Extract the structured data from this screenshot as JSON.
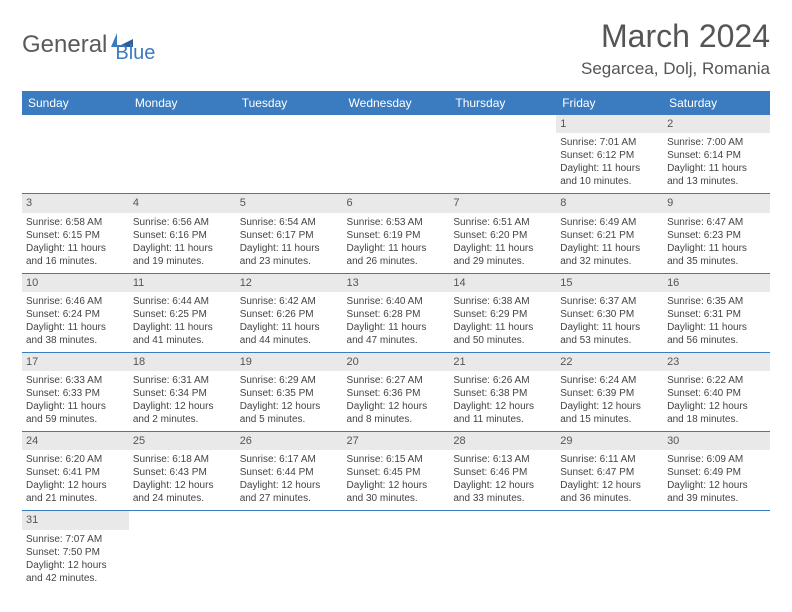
{
  "logo": {
    "general": "General",
    "blue": "Blue"
  },
  "title": "March 2024",
  "location": "Segarcea, Dolj, Romania",
  "colors": {
    "header_bg": "#3b7bbf",
    "header_text": "#ffffff",
    "daynum_bg": "#e9e9e9",
    "border": "#3b7bbf",
    "text": "#444444",
    "title_text": "#555555"
  },
  "days_header": [
    "Sunday",
    "Monday",
    "Tuesday",
    "Wednesday",
    "Thursday",
    "Friday",
    "Saturday"
  ],
  "weeks": [
    [
      null,
      null,
      null,
      null,
      null,
      {
        "n": "1",
        "sunrise": "Sunrise: 7:01 AM",
        "sunset": "Sunset: 6:12 PM",
        "day1": "Daylight: 11 hours",
        "day2": "and 10 minutes."
      },
      {
        "n": "2",
        "sunrise": "Sunrise: 7:00 AM",
        "sunset": "Sunset: 6:14 PM",
        "day1": "Daylight: 11 hours",
        "day2": "and 13 minutes."
      }
    ],
    [
      {
        "n": "3",
        "sunrise": "Sunrise: 6:58 AM",
        "sunset": "Sunset: 6:15 PM",
        "day1": "Daylight: 11 hours",
        "day2": "and 16 minutes."
      },
      {
        "n": "4",
        "sunrise": "Sunrise: 6:56 AM",
        "sunset": "Sunset: 6:16 PM",
        "day1": "Daylight: 11 hours",
        "day2": "and 19 minutes."
      },
      {
        "n": "5",
        "sunrise": "Sunrise: 6:54 AM",
        "sunset": "Sunset: 6:17 PM",
        "day1": "Daylight: 11 hours",
        "day2": "and 23 minutes."
      },
      {
        "n": "6",
        "sunrise": "Sunrise: 6:53 AM",
        "sunset": "Sunset: 6:19 PM",
        "day1": "Daylight: 11 hours",
        "day2": "and 26 minutes."
      },
      {
        "n": "7",
        "sunrise": "Sunrise: 6:51 AM",
        "sunset": "Sunset: 6:20 PM",
        "day1": "Daylight: 11 hours",
        "day2": "and 29 minutes."
      },
      {
        "n": "8",
        "sunrise": "Sunrise: 6:49 AM",
        "sunset": "Sunset: 6:21 PM",
        "day1": "Daylight: 11 hours",
        "day2": "and 32 minutes."
      },
      {
        "n": "9",
        "sunrise": "Sunrise: 6:47 AM",
        "sunset": "Sunset: 6:23 PM",
        "day1": "Daylight: 11 hours",
        "day2": "and 35 minutes."
      }
    ],
    [
      {
        "n": "10",
        "sunrise": "Sunrise: 6:46 AM",
        "sunset": "Sunset: 6:24 PM",
        "day1": "Daylight: 11 hours",
        "day2": "and 38 minutes."
      },
      {
        "n": "11",
        "sunrise": "Sunrise: 6:44 AM",
        "sunset": "Sunset: 6:25 PM",
        "day1": "Daylight: 11 hours",
        "day2": "and 41 minutes."
      },
      {
        "n": "12",
        "sunrise": "Sunrise: 6:42 AM",
        "sunset": "Sunset: 6:26 PM",
        "day1": "Daylight: 11 hours",
        "day2": "and 44 minutes."
      },
      {
        "n": "13",
        "sunrise": "Sunrise: 6:40 AM",
        "sunset": "Sunset: 6:28 PM",
        "day1": "Daylight: 11 hours",
        "day2": "and 47 minutes."
      },
      {
        "n": "14",
        "sunrise": "Sunrise: 6:38 AM",
        "sunset": "Sunset: 6:29 PM",
        "day1": "Daylight: 11 hours",
        "day2": "and 50 minutes."
      },
      {
        "n": "15",
        "sunrise": "Sunrise: 6:37 AM",
        "sunset": "Sunset: 6:30 PM",
        "day1": "Daylight: 11 hours",
        "day2": "and 53 minutes."
      },
      {
        "n": "16",
        "sunrise": "Sunrise: 6:35 AM",
        "sunset": "Sunset: 6:31 PM",
        "day1": "Daylight: 11 hours",
        "day2": "and 56 minutes."
      }
    ],
    [
      {
        "n": "17",
        "sunrise": "Sunrise: 6:33 AM",
        "sunset": "Sunset: 6:33 PM",
        "day1": "Daylight: 11 hours",
        "day2": "and 59 minutes."
      },
      {
        "n": "18",
        "sunrise": "Sunrise: 6:31 AM",
        "sunset": "Sunset: 6:34 PM",
        "day1": "Daylight: 12 hours",
        "day2": "and 2 minutes."
      },
      {
        "n": "19",
        "sunrise": "Sunrise: 6:29 AM",
        "sunset": "Sunset: 6:35 PM",
        "day1": "Daylight: 12 hours",
        "day2": "and 5 minutes."
      },
      {
        "n": "20",
        "sunrise": "Sunrise: 6:27 AM",
        "sunset": "Sunset: 6:36 PM",
        "day1": "Daylight: 12 hours",
        "day2": "and 8 minutes."
      },
      {
        "n": "21",
        "sunrise": "Sunrise: 6:26 AM",
        "sunset": "Sunset: 6:38 PM",
        "day1": "Daylight: 12 hours",
        "day2": "and 11 minutes."
      },
      {
        "n": "22",
        "sunrise": "Sunrise: 6:24 AM",
        "sunset": "Sunset: 6:39 PM",
        "day1": "Daylight: 12 hours",
        "day2": "and 15 minutes."
      },
      {
        "n": "23",
        "sunrise": "Sunrise: 6:22 AM",
        "sunset": "Sunset: 6:40 PM",
        "day1": "Daylight: 12 hours",
        "day2": "and 18 minutes."
      }
    ],
    [
      {
        "n": "24",
        "sunrise": "Sunrise: 6:20 AM",
        "sunset": "Sunset: 6:41 PM",
        "day1": "Daylight: 12 hours",
        "day2": "and 21 minutes."
      },
      {
        "n": "25",
        "sunrise": "Sunrise: 6:18 AM",
        "sunset": "Sunset: 6:43 PM",
        "day1": "Daylight: 12 hours",
        "day2": "and 24 minutes."
      },
      {
        "n": "26",
        "sunrise": "Sunrise: 6:17 AM",
        "sunset": "Sunset: 6:44 PM",
        "day1": "Daylight: 12 hours",
        "day2": "and 27 minutes."
      },
      {
        "n": "27",
        "sunrise": "Sunrise: 6:15 AM",
        "sunset": "Sunset: 6:45 PM",
        "day1": "Daylight: 12 hours",
        "day2": "and 30 minutes."
      },
      {
        "n": "28",
        "sunrise": "Sunrise: 6:13 AM",
        "sunset": "Sunset: 6:46 PM",
        "day1": "Daylight: 12 hours",
        "day2": "and 33 minutes."
      },
      {
        "n": "29",
        "sunrise": "Sunrise: 6:11 AM",
        "sunset": "Sunset: 6:47 PM",
        "day1": "Daylight: 12 hours",
        "day2": "and 36 minutes."
      },
      {
        "n": "30",
        "sunrise": "Sunrise: 6:09 AM",
        "sunset": "Sunset: 6:49 PM",
        "day1": "Daylight: 12 hours",
        "day2": "and 39 minutes."
      }
    ],
    [
      {
        "n": "31",
        "sunrise": "Sunrise: 7:07 AM",
        "sunset": "Sunset: 7:50 PM",
        "day1": "Daylight: 12 hours",
        "day2": "and 42 minutes."
      },
      null,
      null,
      null,
      null,
      null,
      null
    ]
  ]
}
